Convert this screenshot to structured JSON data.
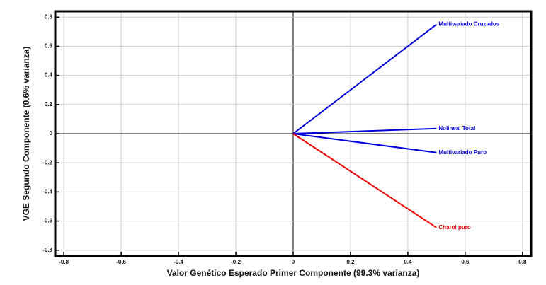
{
  "chart_data": {
    "type": "vector",
    "x_label": "Valor Genético Esperado Primer Componente (99.3% varianza)",
    "y_label": "VGE Segundo Componente (0.6% varianza)",
    "series": [
      {
        "name": "Multivariado Cruzados",
        "color": "#0000dd",
        "x": [
          0,
          0.5
        ],
        "y": [
          0,
          0.75
        ]
      },
      {
        "name": "Nolineal Total",
        "color": "#0000dd",
        "x": [
          0,
          0.5
        ],
        "y": [
          0,
          0.035
        ]
      },
      {
        "name": "Multivariado Puro",
        "color": "#0000dd",
        "x": [
          0,
          0.5
        ],
        "y": [
          0,
          -0.13
        ]
      },
      {
        "name": "Charol puro",
        "color": "#ee0000",
        "x": [
          0,
          0.5
        ],
        "y": [
          0,
          -0.645
        ]
      }
    ],
    "xlim": [
      -0.83,
      0.83
    ],
    "ylim": [
      -0.84,
      0.84
    ],
    "xticks": [
      -0.8,
      -0.6,
      -0.4,
      -0.2,
      0,
      0.2,
      0.4,
      0.6,
      0.8
    ],
    "yticks": [
      -0.8,
      -0.6,
      -0.4,
      -0.2,
      0,
      0.2,
      0.4,
      0.6,
      0.8
    ],
    "grid": true
  }
}
